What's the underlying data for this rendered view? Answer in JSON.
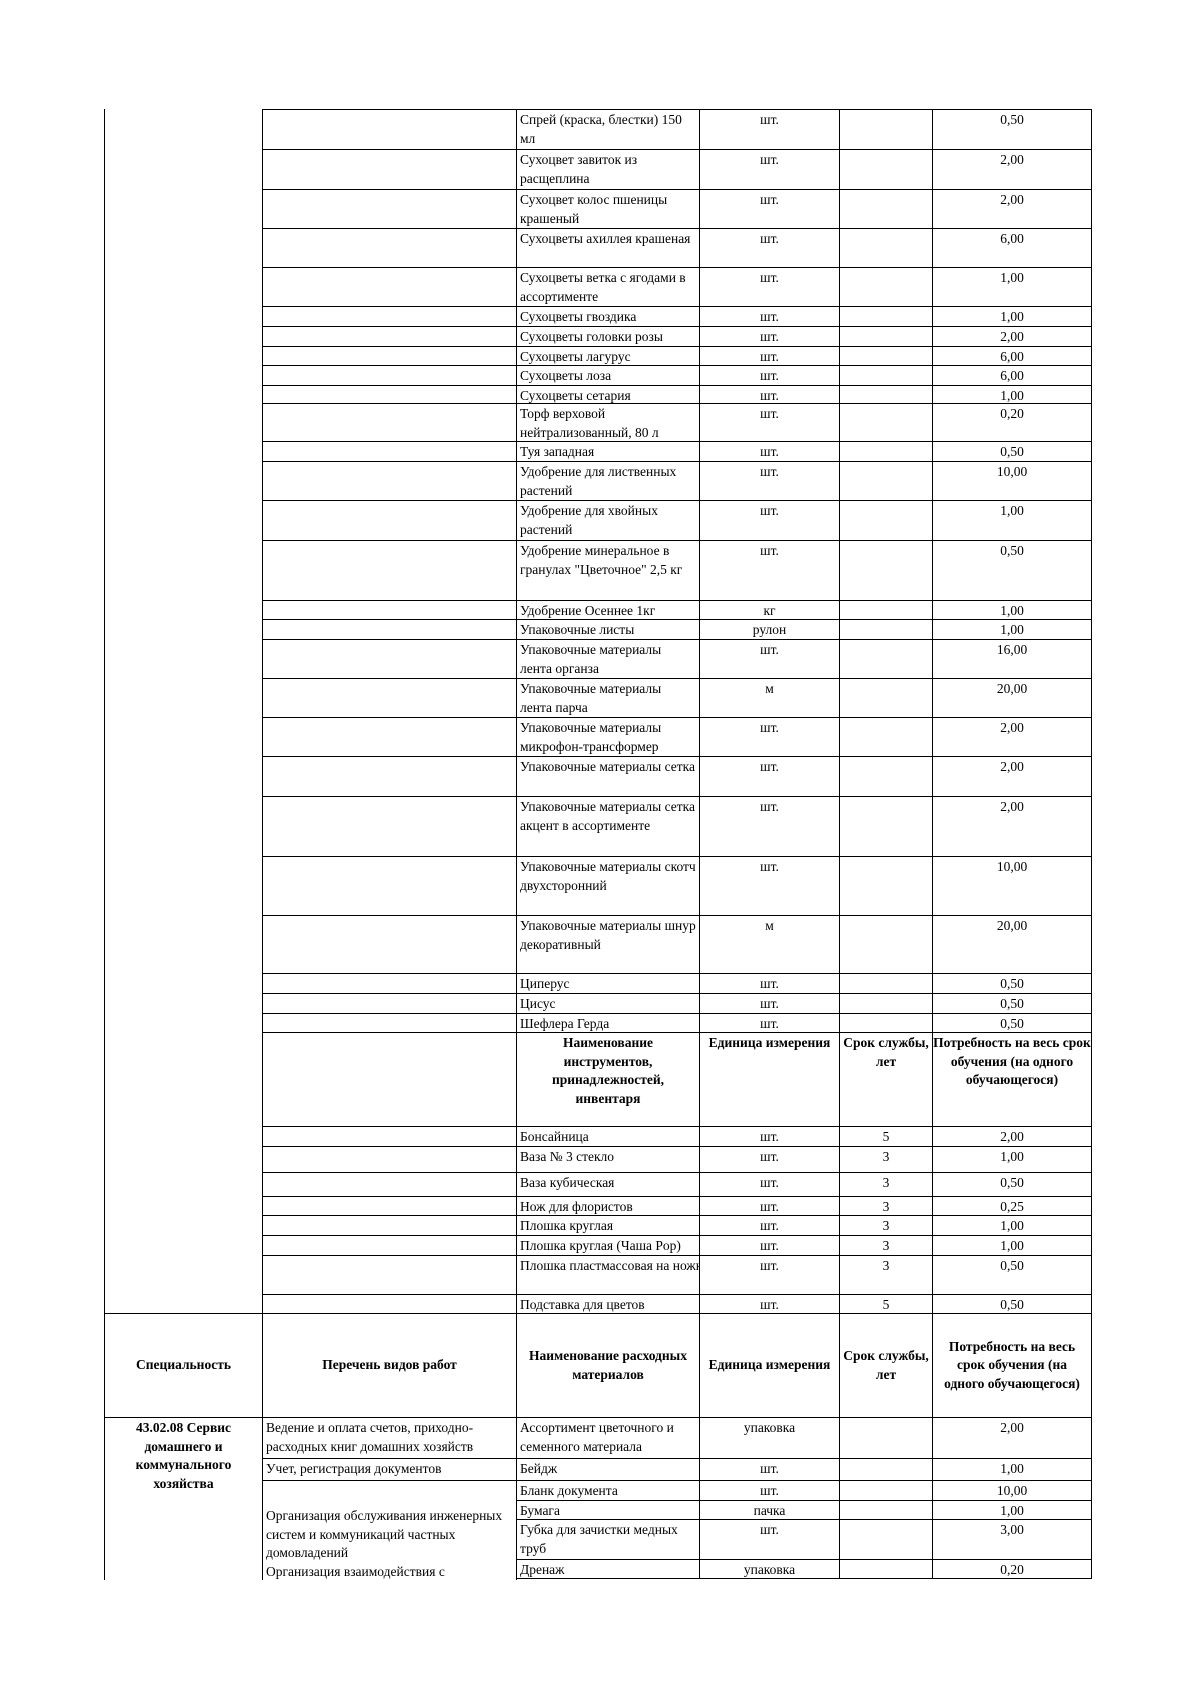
{
  "materials": [
    {
      "name": "Спрей (краска, блестки) 150 мл",
      "unit": "шт.",
      "life": "",
      "qty": "0,50"
    },
    {
      "name": "Сухоцвет завиток из расщеплина",
      "unit": "шт.",
      "life": "",
      "qty": "2,00"
    },
    {
      "name": "Сухоцвет колос пшеницы крашеный",
      "unit": "шт.",
      "life": "",
      "qty": "2,00"
    },
    {
      "name": "Сухоцветы ахиллея крашеная",
      "unit": "шт.",
      "life": "",
      "qty": "6,00"
    },
    {
      "name": "Сухоцветы ветка с ягодами в ассортименте",
      "unit": "шт.",
      "life": "",
      "qty": "1,00"
    },
    {
      "name": "Сухоцветы гвоздика",
      "unit": "шт.",
      "life": "",
      "qty": "1,00"
    },
    {
      "name": "Сухоцветы головки розы",
      "unit": "шт.",
      "life": "",
      "qty": "2,00"
    },
    {
      "name": "Сухоцветы лагурус",
      "unit": "шт.",
      "life": "",
      "qty": "6,00"
    },
    {
      "name": "Сухоцветы лоза",
      "unit": "шт.",
      "life": "",
      "qty": "6,00"
    },
    {
      "name": "Сухоцветы сетария",
      "unit": "шт.",
      "life": "",
      "qty": "1,00"
    },
    {
      "name": "Торф верховой нейтрализованный, 80 л",
      "unit": "шт.",
      "life": "",
      "qty": "0,20"
    },
    {
      "name": "Туя западная",
      "unit": "шт.",
      "life": "",
      "qty": "0,50"
    },
    {
      "name": "Удобрение для лиственных растений",
      "unit": "шт.",
      "life": "",
      "qty": "10,00"
    },
    {
      "name": "Удобрение для хвойных растений",
      "unit": "шт.",
      "life": "",
      "qty": "1,00"
    },
    {
      "name": "Удобрение минеральное в гранулах \"Цветочное\" 2,5 кг",
      "unit": "шт.",
      "life": "",
      "qty": "0,50"
    },
    {
      "name": "Удобрение Осеннее 1кг",
      "unit": "кг",
      "life": "",
      "qty": "1,00"
    },
    {
      "name": "Упаковочные листы",
      "unit": "рулон",
      "life": "",
      "qty": "1,00"
    },
    {
      "name": "Упаковочные материалы лента органза",
      "unit": "шт.",
      "life": "",
      "qty": "16,00"
    },
    {
      "name": "Упаковочные материалы лента парча",
      "unit": "м",
      "life": "",
      "qty": "20,00"
    },
    {
      "name": "Упаковочные материалы микрофон-трансформер",
      "unit": "шт.",
      "life": "",
      "qty": "2,00"
    },
    {
      "name": "Упаковочные материалы сетка",
      "unit": "шт.",
      "life": "",
      "qty": "2,00"
    },
    {
      "name": "Упаковочные материалы сетка акцент в ассортименте",
      "unit": "шт.",
      "life": "",
      "qty": "2,00"
    },
    {
      "name": "Упаковочные материалы скотч двухсторонний",
      "unit": "шт.",
      "life": "",
      "qty": "10,00"
    },
    {
      "name": "Упаковочные материалы шнур декоративный",
      "unit": "м",
      "life": "",
      "qty": "20,00"
    },
    {
      "name": "Циперус",
      "unit": "шт.",
      "life": "",
      "qty": "0,50"
    },
    {
      "name": "Цисус",
      "unit": "шт.",
      "life": "",
      "qty": "0,50"
    },
    {
      "name": "Шефлера Герда",
      "unit": "шт.",
      "life": "",
      "qty": "0,50"
    }
  ],
  "tools_header": {
    "name": "Наименование инструментов, принадлежностей, инвентаря",
    "unit": "Единица измерения",
    "life": "Срок службы, лет",
    "qty": "Потребность на весь срок обучения (на одного обучающегося)"
  },
  "tools": [
    {
      "name": "Бонсайница",
      "unit": "шт.",
      "life": "5",
      "qty": "2,00"
    },
    {
      "name": "Ваза № 3 стекло",
      "unit": "шт.",
      "life": "3",
      "qty": "1,00"
    },
    {
      "name": "Ваза кубическая",
      "unit": "шт.",
      "life": "3",
      "qty": "0,50"
    },
    {
      "name": "Нож для флористов",
      "unit": "шт.",
      "life": "3",
      "qty": "0,25"
    },
    {
      "name": "Плошка круглая",
      "unit": "шт.",
      "life": "3",
      "qty": "1,00"
    },
    {
      "name": "Плошка круглая (Чаша Pop)",
      "unit": "шт.",
      "life": "3",
      "qty": "1,00"
    },
    {
      "name": "Плошка пластмассовая на ножке",
      "unit": "шт.",
      "life": "3",
      "qty": "0,50"
    },
    {
      "name": "Подставка для цветов",
      "unit": "шт.",
      "life": "5",
      "qty": "0,50"
    }
  ],
  "section2": {
    "header": {
      "specialty": "Специальность",
      "works": "Перечень видов работ",
      "name": "Наименование расходных материалов",
      "unit": "Единица измерения",
      "life": "Срок службы, лет",
      "qty": "Потребность на весь срок обучения (на одного обучающегося)"
    },
    "specialty": "43.02.08 Сервис домашнего и коммунального хозяйства",
    "works": [
      "Ведение и оплата счетов, приходно-расходных книг домашних хозяйств",
      "Учет, регистрация документов",
      "Организация обслуживания инженерных систем и коммуникаций частных домовладений",
      "Организация взаимодействия с"
    ],
    "rows": [
      {
        "name": "Ассортимент цветочного и семенного материала",
        "unit": "упаковка",
        "life": "",
        "qty": "2,00"
      },
      {
        "name": "Бейдж",
        "unit": "шт.",
        "life": "",
        "qty": "1,00"
      },
      {
        "name": "Бланк документа",
        "unit": "шт.",
        "life": "",
        "qty": "10,00"
      },
      {
        "name": "Бумага",
        "unit": "пачка",
        "life": "",
        "qty": "1,00"
      },
      {
        "name": "Губка для зачистки медных труб",
        "unit": "шт.",
        "life": "",
        "qty": "3,00"
      },
      {
        "name": "Дренаж",
        "unit": "упаковка",
        "life": "",
        "qty": "0,20"
      }
    ]
  }
}
